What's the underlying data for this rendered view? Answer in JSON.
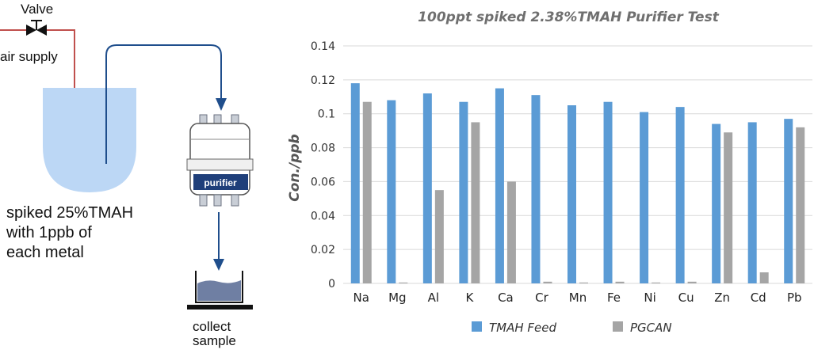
{
  "diagram": {
    "valve_label": "Valve",
    "air_supply_label": "air supply",
    "tank_label": "spiked 25%TMAH\nwith 1ppb of\neach metal",
    "purifier_label": "purifier",
    "collect_label": "collect\nsample",
    "colors": {
      "air_line": "#c0504d",
      "flow_line": "#1f4e8c",
      "tank_fill": "#bcd7f5",
      "purifier_band": "#1f3f7a"
    }
  },
  "chart_data": {
    "type": "bar",
    "title": "100ppt spiked 2.38%TMAH Purifier Test",
    "xlabel": "",
    "ylabel": "Con./ppb",
    "ylim": [
      0,
      0.14
    ],
    "yticks": [
      "0",
      "0.02",
      "0.04",
      "0.06",
      "0.08",
      "0.1",
      "0.12",
      "0.14"
    ],
    "grid": true,
    "legend_position": "bottom",
    "categories": [
      "Na",
      "Mg",
      "Al",
      "K",
      "Ca",
      "Cr",
      "Mn",
      "Fe",
      "Ni",
      "Cu",
      "Zn",
      "Cd",
      "Pb"
    ],
    "series": [
      {
        "name": "TMAH Feed",
        "color": "#5b9bd5",
        "values": [
          0.118,
          0.108,
          0.112,
          0.107,
          0.115,
          0.111,
          0.105,
          0.107,
          0.101,
          0.104,
          0.094,
          0.095,
          0.097
        ]
      },
      {
        "name": "PGCAN",
        "color": "#a5a5a5",
        "values": [
          0.107,
          0.0005,
          0.055,
          0.095,
          0.06,
          0.001,
          0.0005,
          0.001,
          0.0005,
          0.001,
          0.089,
          0.0065,
          0.092
        ]
      }
    ]
  }
}
